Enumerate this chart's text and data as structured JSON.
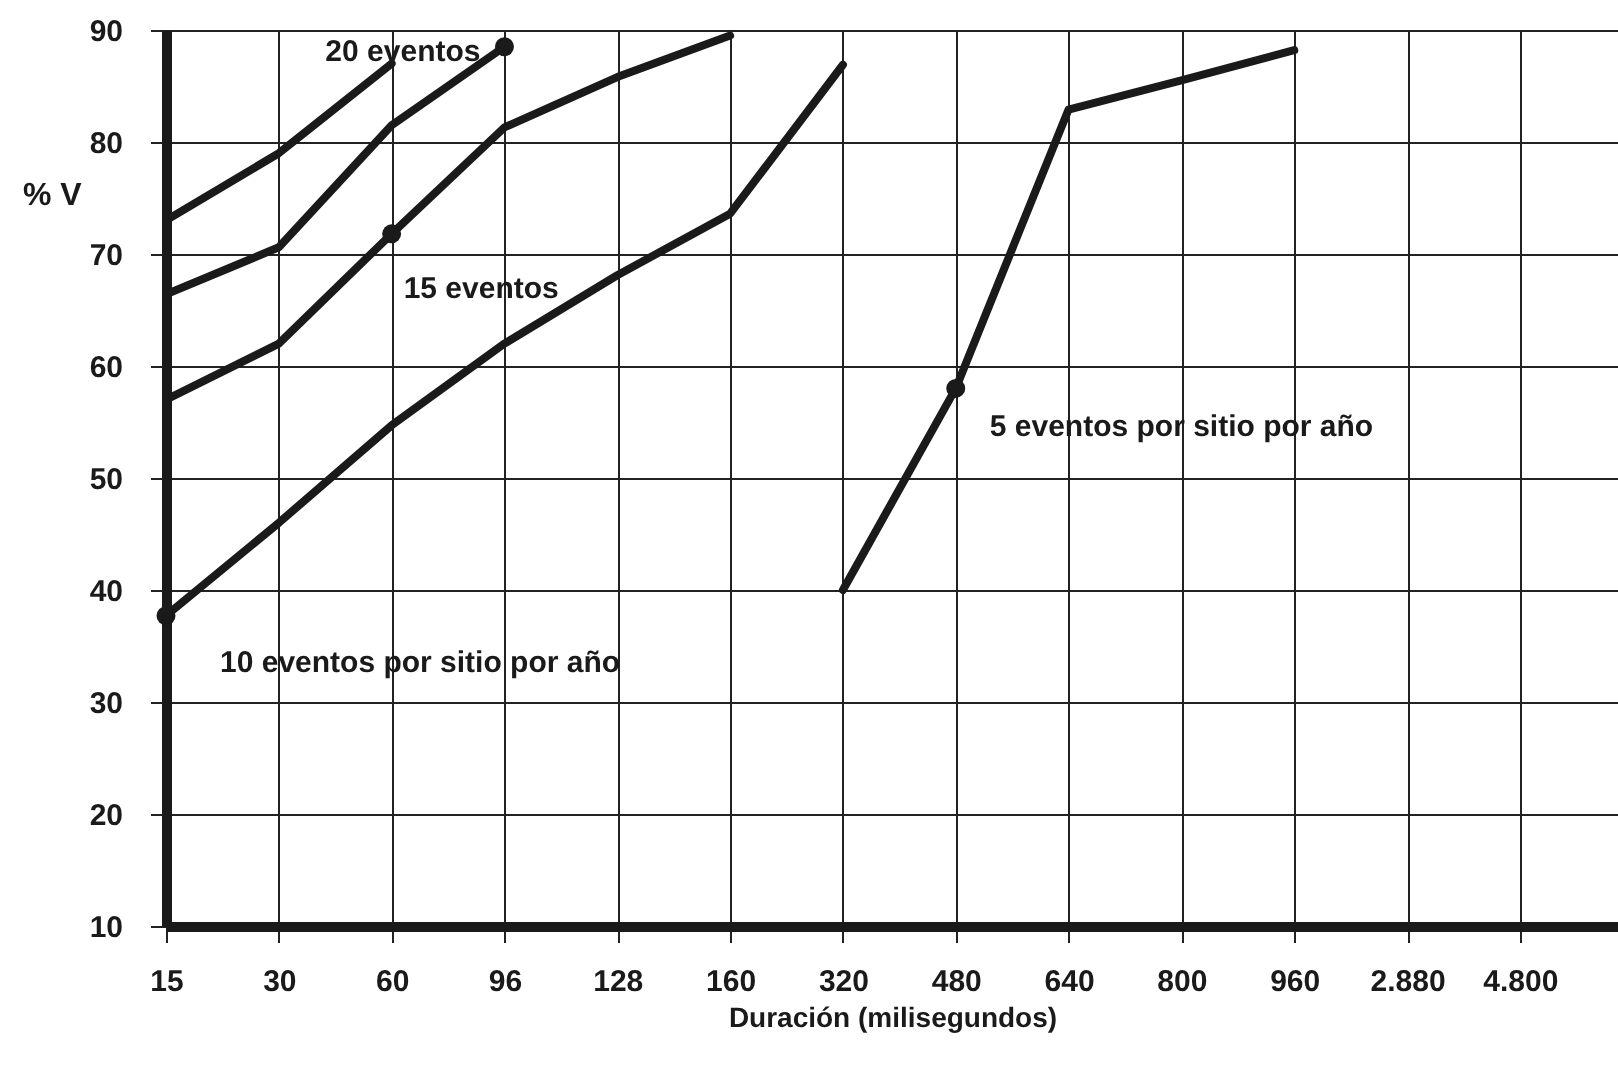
{
  "chart_data": {
    "type": "line",
    "xlabel": "Duración (milisegundos)",
    "ylabel": "% V",
    "categories": [
      "15",
      "30",
      "60",
      "96",
      "128",
      "160",
      "320",
      "480",
      "640",
      "800",
      "960",
      "2.880",
      "4.800"
    ],
    "ylim": [
      10,
      90
    ],
    "yticks": [
      10,
      20,
      30,
      40,
      50,
      60,
      70,
      80,
      90
    ],
    "grid": true,
    "marker": "none",
    "line_style": "solid",
    "series": [
      {
        "color": "#1a1a1a",
        "values": [
          73,
          79,
          87,
          null,
          null,
          null,
          null,
          null,
          null,
          null,
          null,
          null,
          null
        ]
      },
      {
        "color": "#1a1a1a",
        "values": [
          66.4,
          70.6,
          81.5,
          88.5,
          null,
          null,
          null,
          null,
          null,
          null,
          null,
          null,
          null
        ]
      },
      {
        "color": "#1a1a1a",
        "values": [
          57,
          62,
          71.8,
          81.3,
          85.8,
          89.5,
          null,
          null,
          null,
          null,
          null,
          null,
          null
        ]
      },
      {
        "color": "#1a1a1a",
        "values": [
          37.7,
          46,
          54.7,
          62,
          68.1,
          73.6,
          86.9,
          null,
          null,
          null,
          null,
          null,
          null
        ]
      },
      {
        "color": "#1a1a1a",
        "values": [
          null,
          null,
          null,
          null,
          null,
          null,
          40,
          58,
          82.9,
          85.5,
          88.2,
          null,
          null
        ]
      }
    ],
    "annotations": [
      {
        "text": "20 eventos",
        "x": "96",
        "y": 88.5
      },
      {
        "text": "15 eventos",
        "x": "60",
        "y": 71.8
      },
      {
        "text": "10 eventos por sitio por año",
        "x": "15",
        "y": 37.7
      },
      {
        "text": "5 eventos por sitio por año",
        "x": "480",
        "y": 58
      }
    ]
  }
}
